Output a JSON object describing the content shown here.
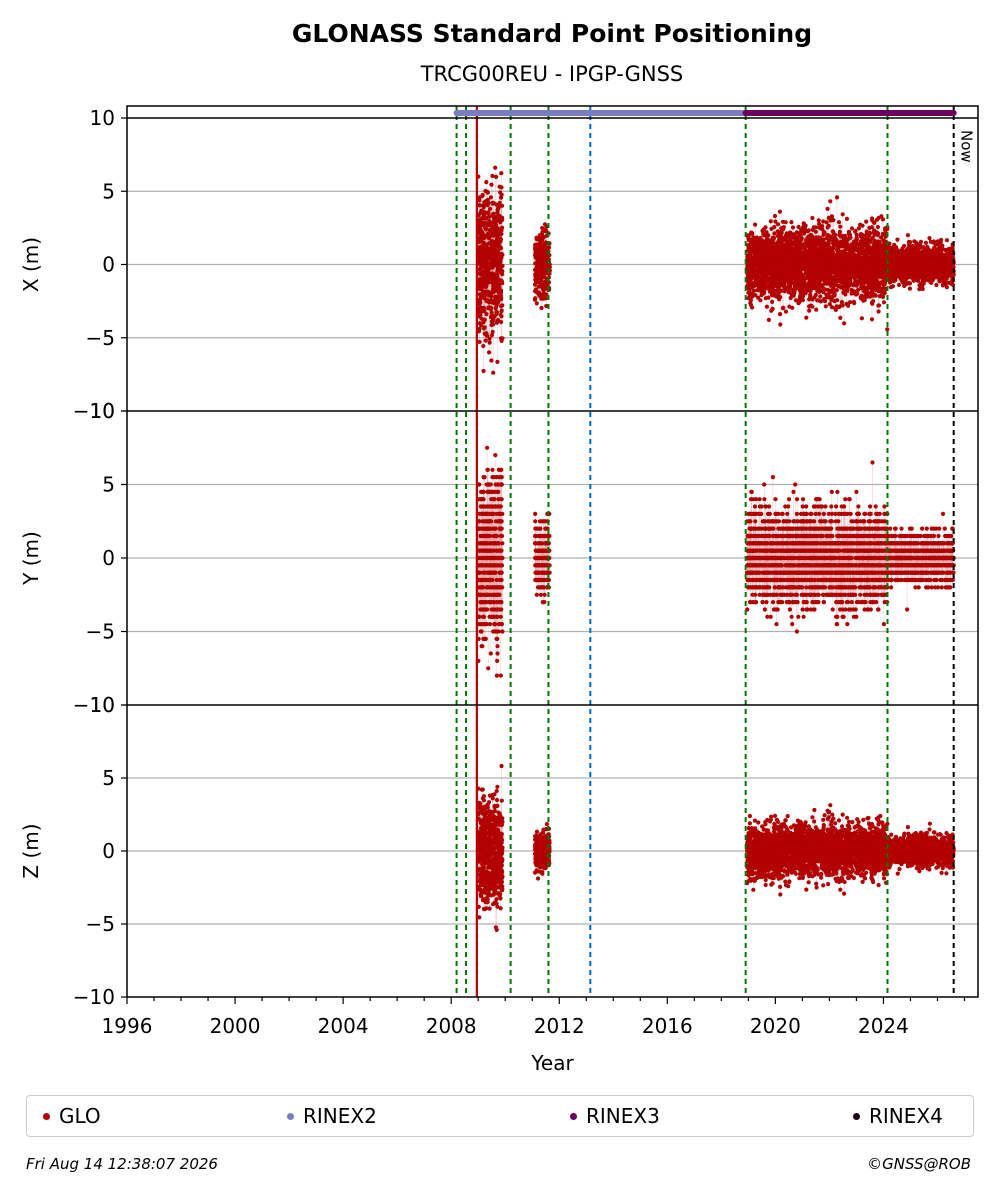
{
  "title": "GLONASS Standard Point Positioning",
  "subtitle": "TRCG00REU - IPGP-GNSS",
  "footer": {
    "timestamp": "Fri Aug 14 12:38:07 2026",
    "credit": "©GNSS@ROB"
  },
  "now_label": "Now",
  "colors": {
    "glo": "#b30000",
    "rinex2": "#7b7bbf",
    "rinex3": "#6a0060",
    "rinex4": "#1a0010",
    "equipment_change": "#007700",
    "other_event": "#0066cc",
    "receiver_event": "#b30000",
    "now_line": "#000000",
    "grid": "#b0b0b0"
  },
  "legend": [
    {
      "label": "GLO",
      "color": "#b30000"
    },
    {
      "label": "RINEX2",
      "color": "#7b7bbf"
    },
    {
      "label": "RINEX3",
      "color": "#6a0060"
    },
    {
      "label": "RINEX4",
      "color": "#1a0010"
    }
  ],
  "chart_data": {
    "type": "scatter",
    "xlabel": "Year",
    "xlim": [
      1996,
      2027.5
    ],
    "x_ticks": [
      "1996",
      "2000",
      "2004",
      "2008",
      "2012",
      "2016",
      "2020",
      "2024"
    ],
    "y_ticks": [
      "−10",
      "−5",
      "0",
      "5",
      "10"
    ],
    "grid": true,
    "legend_position": "bottom",
    "panels": [
      {
        "ylabel": "X (m)",
        "ylim": [
          -10,
          10
        ]
      },
      {
        "ylabel": "Y (m)",
        "ylim": [
          -10,
          10
        ]
      },
      {
        "ylabel": "Z (m)",
        "ylim": [
          -10,
          10
        ]
      }
    ],
    "series": [
      {
        "name": "GLO",
        "segments": [
          {
            "x_range": [
              2009.0,
              2009.9
            ],
            "spread": {
              "x": 4.5,
              "y": 5.0,
              "z": 3.2
            }
          },
          {
            "x_range": [
              2011.1,
              2011.65
            ],
            "spread": {
              "x": 2.0,
              "y": 2.2,
              "z": 1.2
            }
          },
          {
            "x_range": [
              2018.95,
              2024.15
            ],
            "spread": {
              "x": 2.2,
              "y": 2.8,
              "z": 1.6
            }
          },
          {
            "x_range": [
              2024.15,
              2026.6
            ],
            "spread": {
              "x": 1.1,
              "y": 1.4,
              "z": 0.9
            }
          }
        ]
      }
    ],
    "data_availability": [
      {
        "name": "RINEX2",
        "x_range": [
          2008.2,
          2018.9
        ]
      },
      {
        "name": "RINEX3",
        "x_range": [
          2018.9,
          2026.6
        ]
      }
    ],
    "events": [
      {
        "x": 2008.2,
        "kind": "equipment_change"
      },
      {
        "x": 2008.55,
        "kind": "equipment_change"
      },
      {
        "x": 2008.95,
        "kind": "receiver_event"
      },
      {
        "x": 2010.2,
        "kind": "equipment_change"
      },
      {
        "x": 2011.6,
        "kind": "equipment_change"
      },
      {
        "x": 2013.15,
        "kind": "other_event"
      },
      {
        "x": 2018.9,
        "kind": "equipment_change"
      },
      {
        "x": 2024.15,
        "kind": "equipment_change"
      },
      {
        "x": 2026.6,
        "kind": "now"
      }
    ]
  }
}
